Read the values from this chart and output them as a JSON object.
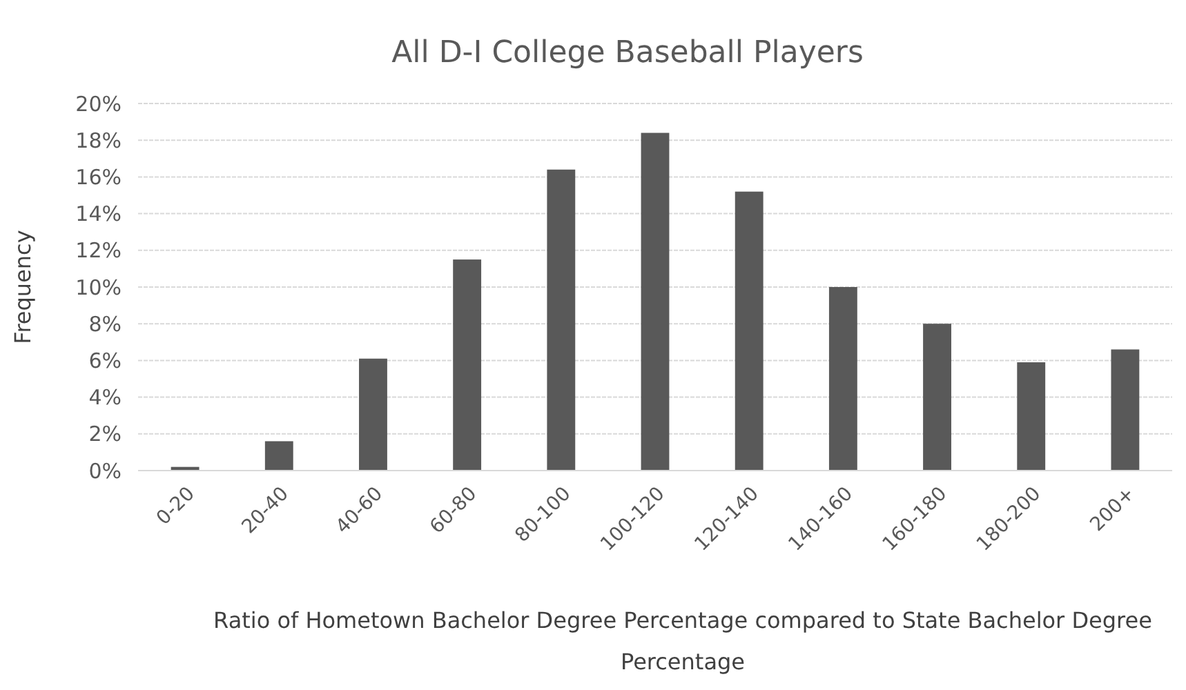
{
  "chart_data": {
    "type": "bar",
    "title": "All D-I College Baseball Players",
    "xlabel": "Ratio of Hometown Bachelor Degree Percentage compared to State Bachelor Degree Percentage",
    "ylabel": "Frequency",
    "categories": [
      "0-20",
      "20-40",
      "40-60",
      "60-80",
      "80-100",
      "100-120",
      "120-140",
      "140-160",
      "160-180",
      "180-200",
      "200+"
    ],
    "values": [
      0.2,
      1.6,
      6.1,
      11.5,
      16.4,
      18.4,
      15.2,
      10.0,
      8.0,
      5.9,
      6.6
    ],
    "color": "#595959",
    "ylim": [
      0,
      20
    ],
    "yticks": [
      {
        "value": 0,
        "label": "0%"
      },
      {
        "value": 2,
        "label": "2%"
      },
      {
        "value": 4,
        "label": "4%"
      },
      {
        "value": 6,
        "label": "6%"
      },
      {
        "value": 8,
        "label": "8%"
      },
      {
        "value": 10,
        "label": "10%"
      },
      {
        "value": 12,
        "label": "12%"
      },
      {
        "value": 14,
        "label": "14%"
      },
      {
        "value": 16,
        "label": "16%"
      },
      {
        "value": 18,
        "label": "18%"
      },
      {
        "value": 20,
        "label": "20%"
      }
    ],
    "grid": "y"
  }
}
